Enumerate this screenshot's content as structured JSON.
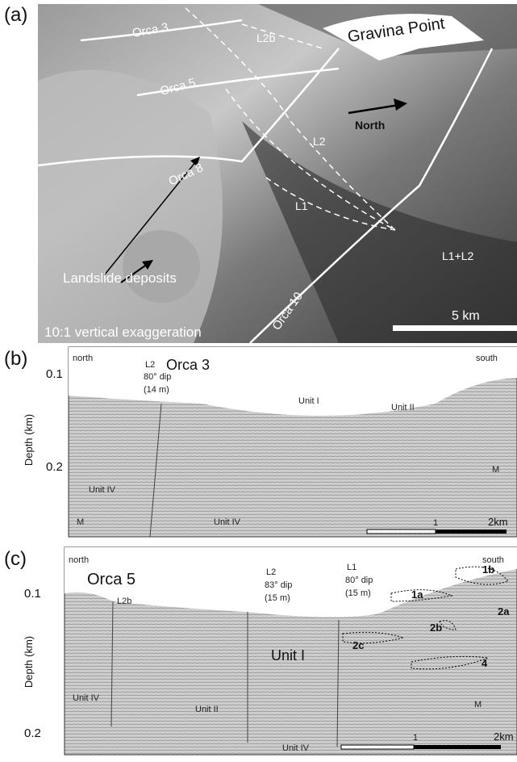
{
  "panel_a": {
    "label": "(a)",
    "track_labels": [
      "Orca 3",
      "Orca 5",
      "Orca 8",
      "Orca 10"
    ],
    "fault_labels": [
      "L2b",
      "L2",
      "L1",
      "L1+L2"
    ],
    "place": "Gravina Point",
    "direction": "North",
    "feature": "Landslide deposits",
    "caption": "10:1 vertical exaggeration",
    "scale": "5 km"
  },
  "panel_b": {
    "label": "(b)",
    "title": "Orca 3",
    "left": "north",
    "right": "south",
    "y_label": "Depth (km)",
    "yticks": [
      "0.1",
      "0.2"
    ],
    "fault": [
      "L2",
      "80° dip",
      "(14 m)"
    ],
    "units": [
      "Unit I",
      "Unit II",
      "Unit IV",
      "Unit IV",
      "M",
      "M"
    ],
    "scale": [
      "1",
      "2km"
    ]
  },
  "panel_c": {
    "label": "(c)",
    "title": "Orca 5",
    "left": "north",
    "right": "south",
    "y_label": "Depth (km)",
    "yticks": [
      "0.1",
      "0.2"
    ],
    "faults": [
      [
        "L2b"
      ],
      [
        "L2",
        "83° dip",
        "(15 m)"
      ],
      [
        "L1",
        "80° dip",
        "(15 m)"
      ]
    ],
    "units": [
      "Unit I",
      "Unit II",
      "Unit IV",
      "Unit IV",
      "M"
    ],
    "bodies": [
      "1a",
      "1b",
      "2a",
      "2b",
      "2c",
      "4"
    ],
    "scale": [
      "1",
      "2km"
    ]
  }
}
